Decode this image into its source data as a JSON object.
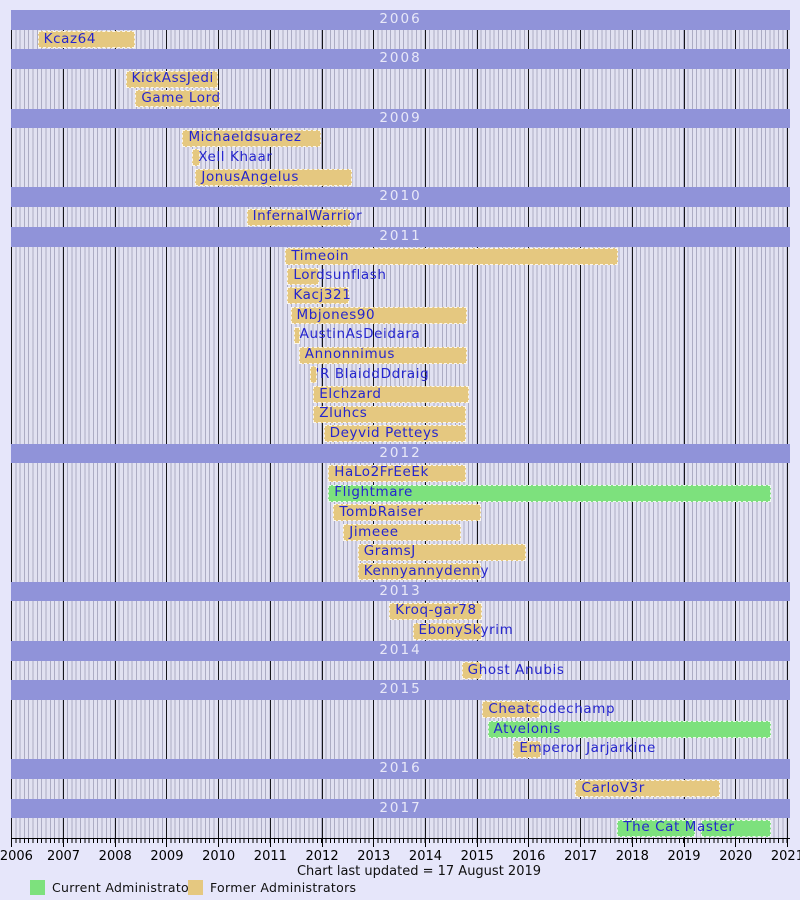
{
  "chart_data": {
    "type": "gantt",
    "title": "",
    "footer": "Chart last updated = 17 August 2019",
    "x_axis": {
      "start": 2006,
      "end": 2021,
      "tick_labels": [
        "2006",
        "2007",
        "2008",
        "2009",
        "2010",
        "2011",
        "2012",
        "2013",
        "2014",
        "2015",
        "2016",
        "2017",
        "2018",
        "2019",
        "2020",
        "2021"
      ],
      "minor_tick_interval": "monthly",
      "grid": "yearly black lines over monthly striped background"
    },
    "legend": {
      "position": "bottom-left",
      "current": {
        "label": "Current Administrators",
        "color": "#7de17d"
      },
      "former": {
        "label": "Former Administrators",
        "color": "#e5c880"
      }
    },
    "colors": {
      "background": "#e6e6fa",
      "plot_background": "#e1e1f1",
      "year_band": "#9093d9",
      "year_band_text": "#e8e8f8",
      "bar_text": "#2525ce",
      "current_admin": "#7de17d",
      "former_admin": "#e5c880"
    },
    "rows": [
      {
        "type": "band",
        "label": "2006"
      },
      {
        "type": "bar",
        "label": "Kcaz64",
        "status": "former",
        "segments": [
          [
            2006.5,
            2008.35
          ]
        ]
      },
      {
        "type": "band",
        "label": "2008"
      },
      {
        "type": "bar",
        "label": "KickAssJedi",
        "status": "former",
        "segments": [
          [
            2008.2,
            2009.94
          ]
        ]
      },
      {
        "type": "bar",
        "label": "Game Lord",
        "status": "former",
        "segments": [
          [
            2008.39,
            2009.98
          ]
        ]
      },
      {
        "type": "band",
        "label": "2009"
      },
      {
        "type": "bar",
        "label": "Michaeldsuarez",
        "status": "former",
        "segments": [
          [
            2009.3,
            2011.95
          ]
        ]
      },
      {
        "type": "bar",
        "label": "Xell Khaar",
        "status": "former",
        "segments": [
          [
            2009.49,
            2009.61
          ]
        ]
      },
      {
        "type": "bar",
        "label": "JonusAngelus",
        "status": "former",
        "segments": [
          [
            2009.55,
            2012.55
          ]
        ]
      },
      {
        "type": "band",
        "label": "2010"
      },
      {
        "type": "bar",
        "label": "InfernalWarrior",
        "status": "former",
        "segments": [
          [
            2010.54,
            2012.53
          ]
        ]
      },
      {
        "type": "band",
        "label": "2011"
      },
      {
        "type": "bar",
        "label": "Timeoin",
        "status": "former",
        "segments": [
          [
            2011.29,
            2017.68
          ]
        ]
      },
      {
        "type": "bar",
        "label": "Lordsunflash",
        "status": "former",
        "segments": [
          [
            2011.33,
            2011.91
          ]
        ]
      },
      {
        "type": "bar",
        "label": "Kacj321",
        "status": "former",
        "segments": [
          [
            2011.33,
            2012.49
          ]
        ]
      },
      {
        "type": "bar",
        "label": "Mbjones90",
        "status": "former",
        "segments": [
          [
            2011.39,
            2014.76
          ]
        ]
      },
      {
        "type": "bar",
        "label": "AustinAsDeidara",
        "status": "former",
        "segments": [
          [
            2011.45,
            2011.54
          ]
        ]
      },
      {
        "type": "bar",
        "label": "Annonnimus",
        "status": "former",
        "segments": [
          [
            2011.55,
            2014.77
          ]
        ]
      },
      {
        "type": "bar",
        "label": "'R BlaiddDdraig",
        "status": "former",
        "segments": [
          [
            2011.76,
            2011.87
          ]
        ]
      },
      {
        "type": "bar",
        "label": "Elchzard",
        "status": "former",
        "segments": [
          [
            2011.83,
            2014.81
          ]
        ]
      },
      {
        "type": "bar",
        "label": "Zluhcs",
        "status": "former",
        "segments": [
          [
            2011.83,
            2014.74
          ]
        ]
      },
      {
        "type": "bar",
        "label": "Deyvid Petteys",
        "status": "former",
        "segments": [
          [
            2012.03,
            2014.74
          ]
        ]
      },
      {
        "type": "band",
        "label": "2012"
      },
      {
        "type": "bar",
        "label": "HaLo2FrEeEk",
        "status": "former",
        "segments": [
          [
            2012.12,
            2014.74
          ]
        ]
      },
      {
        "type": "bar",
        "label": "Flightmare",
        "status": "current",
        "segments": [
          [
            2012.12,
            2020.65
          ]
        ]
      },
      {
        "type": "bar",
        "label": "TombRaiser",
        "status": "former",
        "segments": [
          [
            2012.22,
            2015.03
          ]
        ]
      },
      {
        "type": "bar",
        "label": "Jimeee",
        "status": "former",
        "segments": [
          [
            2012.41,
            2014.64
          ]
        ]
      },
      {
        "type": "bar",
        "label": "GramsJ",
        "status": "former",
        "segments": [
          [
            2012.69,
            2015.9
          ]
        ]
      },
      {
        "type": "bar",
        "label": "Kennyannydenny",
        "status": "former",
        "segments": [
          [
            2012.69,
            2015.03
          ]
        ]
      },
      {
        "type": "band",
        "label": "2013"
      },
      {
        "type": "bar",
        "label": "Kroq-gar78",
        "status": "former",
        "segments": [
          [
            2013.3,
            2015.06
          ]
        ]
      },
      {
        "type": "bar",
        "label": "EbonySkyrim",
        "status": "former",
        "segments": [
          [
            2013.75,
            2015.06
          ]
        ]
      },
      {
        "type": "band",
        "label": "2014"
      },
      {
        "type": "bar",
        "label": "Ghost Anubis",
        "status": "former",
        "segments": [
          [
            2014.7,
            2015.06
          ]
        ]
      },
      {
        "type": "band",
        "label": "2015"
      },
      {
        "type": "bar",
        "label": "Cheatcodechamp",
        "status": "former",
        "segments": [
          [
            2015.1,
            2016.17
          ]
        ]
      },
      {
        "type": "bar",
        "label": "Atvelonis",
        "status": "current",
        "segments": [
          [
            2015.2,
            2020.65
          ]
        ]
      },
      {
        "type": "bar",
        "label": "Emperor Jarjarkine",
        "status": "former",
        "segments": [
          [
            2015.7,
            2016.19
          ]
        ]
      },
      {
        "type": "band",
        "label": "2016"
      },
      {
        "type": "bar",
        "label": "CarloV3r",
        "status": "former",
        "segments": [
          [
            2016.9,
            2019.65
          ]
        ]
      },
      {
        "type": "band",
        "label": "2017"
      },
      {
        "type": "bar",
        "label": "The Cat Master",
        "status": "current",
        "segments": [
          [
            2017.71,
            2019.18
          ],
          [
            2019.32,
            2020.65
          ]
        ]
      }
    ]
  }
}
